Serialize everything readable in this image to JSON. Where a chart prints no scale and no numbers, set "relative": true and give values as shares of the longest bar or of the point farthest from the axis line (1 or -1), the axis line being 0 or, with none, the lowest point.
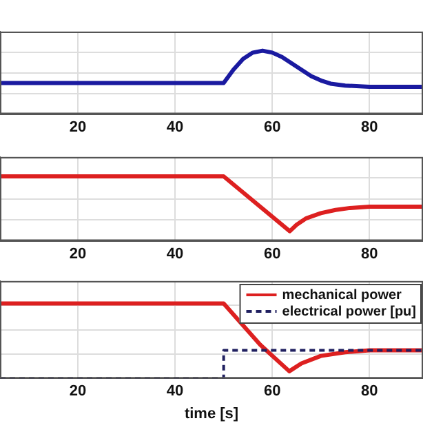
{
  "chart_data": [
    {
      "type": "line",
      "relative": true,
      "xlim": [
        4,
        91
      ],
      "xticks": [
        20,
        40,
        60,
        80
      ],
      "grid": true,
      "series": [
        {
          "color": "#1a1aa0",
          "x": [
            4,
            50,
            52,
            54,
            56,
            58,
            60,
            62,
            64,
            66,
            68,
            70,
            72,
            75,
            80,
            85,
            91
          ],
          "values": [
            0.49,
            0.49,
            0.7,
            0.87,
            0.97,
            1,
            0.97,
            0.9,
            0.8,
            0.7,
            0.6,
            0.53,
            0.48,
            0.45,
            0.43,
            0.43,
            0.43
          ]
        }
      ]
    },
    {
      "type": "line",
      "relative": true,
      "xlim": [
        4,
        91
      ],
      "xticks": [
        20,
        40,
        60,
        80
      ],
      "grid": true,
      "series": [
        {
          "color": "#dd2020",
          "x": [
            4,
            50,
            63.6,
            65,
            67,
            70,
            73,
            76,
            80,
            85,
            91
          ],
          "values": [
            1,
            1,
            0.15,
            0.25,
            0.35,
            0.43,
            0.48,
            0.51,
            0.53,
            0.53,
            0.53
          ]
        }
      ]
    },
    {
      "type": "line",
      "relative": true,
      "xlim": [
        4,
        91
      ],
      "xticks": [
        20,
        40,
        60,
        80
      ],
      "grid": true,
      "xlabel": "time [s]",
      "legend": "top right",
      "series": [
        {
          "name": "mechanical power",
          "color": "#dd2020",
          "line_style": "solid",
          "x": [
            4,
            50,
            57.5,
            63.5,
            66,
            70,
            75,
            80,
            85,
            91
          ],
          "values": [
            1,
            1,
            0.45,
            0.095,
            0.2,
            0.3,
            0.35,
            0.375,
            0.375,
            0.375
          ]
        },
        {
          "name": "electrical power [pu]",
          "color": "#202060",
          "line_style": "dashed",
          "x": [
            4,
            50,
            50,
            91
          ],
          "values": [
            0,
            0,
            0.375,
            0.375
          ]
        }
      ]
    }
  ]
}
